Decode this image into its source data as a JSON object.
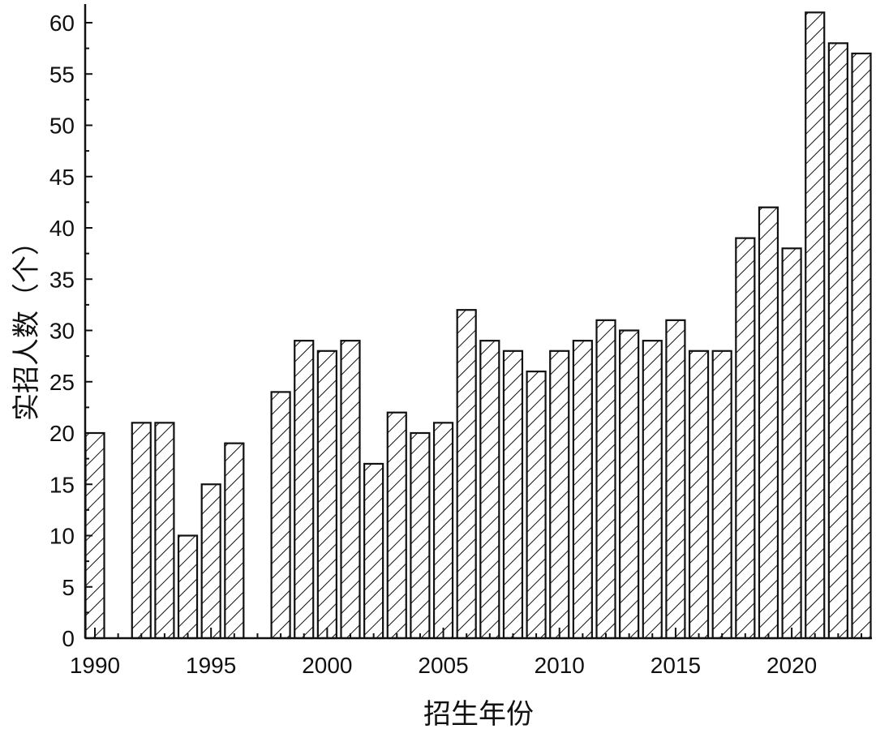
{
  "chart_data": {
    "type": "bar",
    "xlabel": "招生年份",
    "ylabel": "实招人数（个）",
    "ylim": [
      0,
      62
    ],
    "xlim": [
      1990,
      2023
    ],
    "yticks": [
      0,
      5,
      10,
      15,
      20,
      25,
      30,
      35,
      40,
      45,
      50,
      55,
      60
    ],
    "xticks": [
      1990,
      1995,
      2000,
      2005,
      2010,
      2015,
      2020
    ],
    "bar_fill": "hatched diagonal",
    "colors": {
      "stroke": "#111111",
      "background": "#ffffff"
    },
    "grid": false,
    "legend": "none",
    "categories": [
      1990,
      1992,
      1993,
      1994,
      1995,
      1996,
      1998,
      1999,
      2000,
      2001,
      2002,
      2003,
      2004,
      2005,
      2006,
      2007,
      2008,
      2009,
      2010,
      2011,
      2012,
      2013,
      2014,
      2015,
      2016,
      2017,
      2018,
      2019,
      2020,
      2021,
      2022,
      2023
    ],
    "values": [
      20,
      21,
      21,
      10,
      15,
      19,
      24,
      29,
      28,
      29,
      17,
      22,
      20,
      21,
      32,
      29,
      28,
      26,
      28,
      29,
      31,
      30,
      29,
      31,
      28,
      28,
      39,
      42,
      38,
      61,
      58,
      57
    ]
  }
}
